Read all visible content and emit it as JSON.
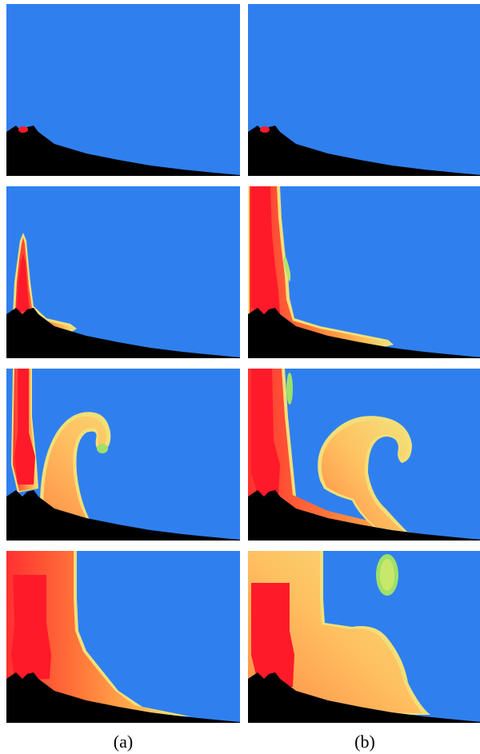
{
  "figure": {
    "columns": [
      {
        "label": "(a)"
      },
      {
        "label": "(b)"
      }
    ],
    "rows": 4,
    "colors": {
      "sky": "#2f80ee",
      "terrain": "#000000",
      "plume_core": "#ff1a2a",
      "plume_mid": "#ff8a3d",
      "plume_outer": "#f5e070",
      "plume_edge": "#9ee06a"
    }
  }
}
